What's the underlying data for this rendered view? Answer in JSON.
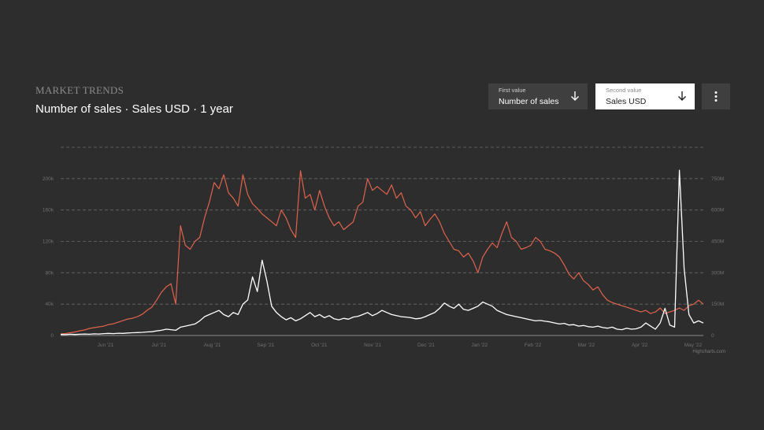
{
  "header": {
    "eyebrow": "MARKET TRENDS",
    "title": "Number of sales · Sales USD · 1 year"
  },
  "controls": {
    "first": {
      "label": "First value",
      "value": "Number of sales"
    },
    "second": {
      "label": "Second value",
      "value": "Sales USD"
    },
    "menu_icon": "vertical-dots-icon",
    "arrow_icon": "arrow-down-icon"
  },
  "chart_data": {
    "type": "line",
    "x_tick_labels": [
      "Jun '21",
      "Jul '21",
      "Aug '21",
      "Sep '21",
      "Oct '21",
      "Nov '21",
      "Dec '21",
      "Jan '22",
      "Feb '22",
      "Mar '22",
      "Apr '22",
      "May '22"
    ],
    "y_left": {
      "ticks": [
        0,
        40000,
        80000,
        120000,
        160000,
        200000
      ],
      "tick_labels": [
        "0",
        "40k",
        "80k",
        "120k",
        "160k",
        "200k"
      ],
      "range": [
        0,
        240000
      ]
    },
    "y_right": {
      "ticks": [
        0,
        150000000,
        300000000,
        450000000,
        600000000,
        750000000
      ],
      "tick_labels": [
        "0",
        "150M",
        "300M",
        "450M",
        "600M",
        "750M"
      ],
      "range": [
        0,
        900000000
      ]
    },
    "grid": true,
    "credit": "Highcharts.com",
    "series": [
      {
        "axis": "left",
        "color": "#e0634c",
        "values": [
          2000,
          2500,
          3500,
          4500,
          6000,
          7000,
          9000,
          10000,
          11000,
          12000,
          14000,
          15000,
          17000,
          19000,
          21000,
          22000,
          24000,
          27000,
          32000,
          36000,
          45000,
          55000,
          62000,
          66000,
          40000,
          140000,
          115000,
          110000,
          120000,
          125000,
          150000,
          170000,
          195000,
          187000,
          205000,
          182000,
          175000,
          165000,
          205000,
          180000,
          168000,
          162000,
          155000,
          150000,
          145000,
          140000,
          160000,
          150000,
          135000,
          125000,
          210000,
          175000,
          180000,
          160000,
          185000,
          165000,
          150000,
          140000,
          145000,
          135000,
          140000,
          145000,
          165000,
          170000,
          200000,
          185000,
          190000,
          185000,
          180000,
          192000,
          175000,
          182000,
          165000,
          160000,
          150000,
          158000,
          140000,
          148000,
          155000,
          145000,
          130000,
          120000,
          110000,
          108000,
          100000,
          105000,
          95000,
          80000,
          100000,
          110000,
          118000,
          112000,
          130000,
          145000,
          125000,
          120000,
          110000,
          112000,
          115000,
          125000,
          120000,
          110000,
          108000,
          105000,
          100000,
          90000,
          78000,
          72000,
          80000,
          70000,
          65000,
          58000,
          62000,
          52000,
          45000,
          42000,
          40000,
          38000,
          36000,
          34000,
          32000,
          30000,
          32000,
          28000,
          30000,
          35000,
          28000,
          30000,
          32000,
          35000,
          32000,
          38000,
          40000,
          45000,
          40000
        ],
        "name": ""
      },
      {
        "axis": "right",
        "color": "#ffffff",
        "values": [
          5000000,
          4000000,
          6000000,
          5000000,
          6000000,
          7000000,
          6000000,
          8000000,
          7000000,
          9000000,
          10000000,
          9000000,
          11000000,
          10000000,
          12000000,
          13000000,
          14000000,
          15000000,
          17000000,
          18000000,
          22000000,
          25000000,
          30000000,
          28000000,
          25000000,
          40000000,
          45000000,
          50000000,
          55000000,
          70000000,
          90000000,
          100000000,
          110000000,
          120000000,
          100000000,
          90000000,
          110000000,
          100000000,
          150000000,
          170000000,
          280000000,
          210000000,
          360000000,
          260000000,
          140000000,
          110000000,
          90000000,
          75000000,
          85000000,
          70000000,
          80000000,
          95000000,
          110000000,
          90000000,
          100000000,
          85000000,
          95000000,
          80000000,
          75000000,
          82000000,
          78000000,
          88000000,
          92000000,
          100000000,
          110000000,
          95000000,
          105000000,
          120000000,
          110000000,
          100000000,
          95000000,
          90000000,
          88000000,
          85000000,
          80000000,
          82000000,
          90000000,
          100000000,
          110000000,
          130000000,
          155000000,
          140000000,
          130000000,
          150000000,
          125000000,
          120000000,
          130000000,
          140000000,
          160000000,
          150000000,
          140000000,
          120000000,
          110000000,
          100000000,
          95000000,
          90000000,
          85000000,
          80000000,
          75000000,
          70000000,
          72000000,
          68000000,
          65000000,
          60000000,
          55000000,
          58000000,
          50000000,
          52000000,
          45000000,
          48000000,
          42000000,
          40000000,
          45000000,
          38000000,
          35000000,
          40000000,
          30000000,
          28000000,
          35000000,
          30000000,
          32000000,
          40000000,
          60000000,
          45000000,
          30000000,
          60000000,
          130000000,
          50000000,
          40000000,
          790000000,
          320000000,
          100000000,
          60000000,
          70000000,
          60000000
        ],
        "name": ""
      }
    ]
  }
}
